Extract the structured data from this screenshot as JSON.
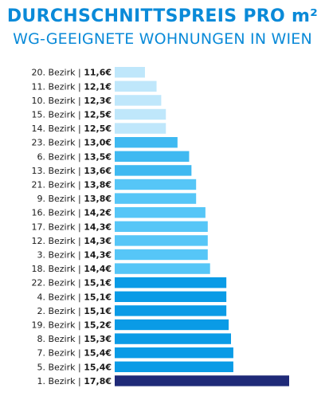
{
  "chart_data": {
    "type": "bar",
    "title": "DURCHSCHNITTSPREIS PRO m²",
    "subtitle": "WG-GEEIGNETE WOHNUNGEN IN WIEN",
    "orientation": "horizontal",
    "categories": [
      "20. Bezirk",
      "11. Bezirk",
      "10. Bezirk",
      "15. Bezirk",
      "14. Bezirk",
      "23. Bezirk",
      "6. Bezirk",
      "13. Bezirk",
      "21. Bezirk",
      "9. Bezirk",
      "16. Bezirk",
      "17. Bezirk",
      "12. Bezirk",
      "3. Bezirk",
      "18. Bezirk",
      "22. Bezirk",
      "4. Bezirk",
      "2. Bezirk",
      "19. Bezirk",
      "8. Bezirk",
      "7. Bezirk",
      "5. Bezirk",
      "1. Bezirk"
    ],
    "value_labels": [
      "11,6€",
      "12,1€",
      "12,3€",
      "12,5€",
      "12,5€",
      "13,0€",
      "13,5€",
      "13,6€",
      "13,8€",
      "13,8€",
      "14,2€",
      "14,3€",
      "14,3€",
      "14,3€",
      "14,4€",
      "15,1€",
      "15,1€",
      "15,1€",
      "15,2€",
      "15,3€",
      "15,4€",
      "15,4€",
      "17,8€"
    ],
    "values": [
      11.6,
      12.1,
      12.3,
      12.5,
      12.5,
      13.0,
      13.5,
      13.6,
      13.8,
      13.8,
      14.2,
      14.3,
      14.3,
      14.3,
      14.4,
      15.1,
      15.1,
      15.1,
      15.2,
      15.3,
      15.4,
      15.4,
      17.8
    ],
    "bar_colors": [
      "#bfe7fb",
      "#bfe7fb",
      "#bfe7fb",
      "#bfe7fb",
      "#bfe7fb",
      "#3fb9f1",
      "#3fb9f1",
      "#3fb9f1",
      "#56c6f7",
      "#56c6f7",
      "#56c6f7",
      "#56c6f7",
      "#56c6f7",
      "#56c6f7",
      "#56c6f7",
      "#0a9be6",
      "#0a9be6",
      "#0a9be6",
      "#0a9be6",
      "#0a9be6",
      "#0a9be6",
      "#0a9be6",
      "#1f2a78"
    ],
    "xlim": [
      10,
      18.5
    ],
    "grid": false,
    "legend": "none"
  }
}
